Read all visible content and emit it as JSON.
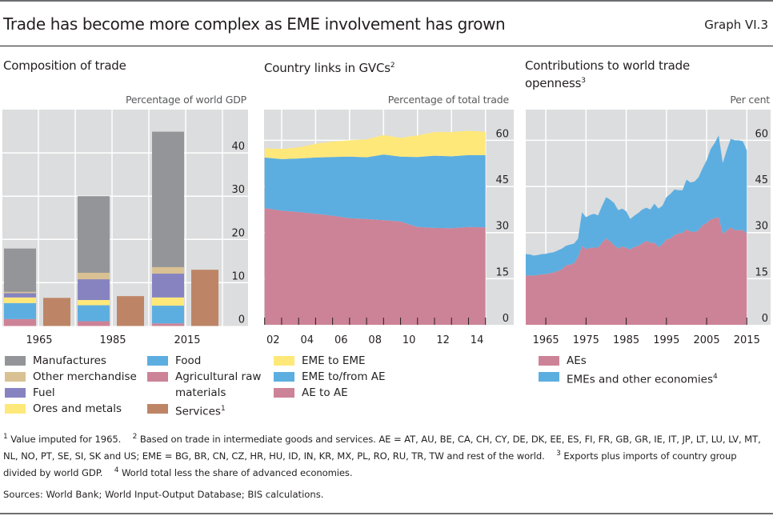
{
  "header": {
    "title": "Trade has become more complex as EME involvement has grown",
    "graph_number": "Graph VI.3"
  },
  "colors": {
    "manufactures": "#939598",
    "other_merchandise": "#d9c193",
    "fuel": "#8683c0",
    "ores_metals": "#ffe87a",
    "food": "#5daee0",
    "agri": "#cd8397",
    "services": "#bd8566",
    "panel_bg": "#dcddde",
    "grid": "#ffffff"
  },
  "chart_data": [
    {
      "type": "bar",
      "stacked": true,
      "title": "Composition of trade",
      "title_footnote": "",
      "unit_label": "Percentage of world GDP",
      "categories": [
        "1965",
        "1985",
        "2015"
      ],
      "ylim": [
        0,
        50
      ],
      "yticks": [
        "0",
        "10",
        "20",
        "30",
        "40"
      ],
      "ytick_values": [
        0,
        10,
        20,
        30,
        40
      ],
      "grid": true,
      "merchandise_series": [
        {
          "name": "Agricultural raw materials",
          "color_key": "agri",
          "values": [
            1.6,
            1.1,
            0.6
          ]
        },
        {
          "name": "Food",
          "color_key": "food",
          "values": [
            3.7,
            3.7,
            4.1
          ]
        },
        {
          "name": "Ores and metals",
          "color_key": "ores_metals",
          "values": [
            1.3,
            1.2,
            1.9
          ]
        },
        {
          "name": "Fuel",
          "color_key": "fuel",
          "values": [
            1.0,
            4.8,
            5.5
          ]
        },
        {
          "name": "Other merchandise",
          "color_key": "other_merchandise",
          "values": [
            0.3,
            1.5,
            1.5
          ]
        },
        {
          "name": "Manufactures",
          "color_key": "manufactures",
          "values": [
            10.0,
            17.7,
            31.3
          ]
        }
      ],
      "services_series": {
        "name": "Services",
        "footnote": "1",
        "color_key": "services",
        "values": [
          6.5,
          6.9,
          13.0
        ]
      },
      "legend": {
        "col1": [
          {
            "label": "Manufactures",
            "color_key": "manufactures",
            "sup": ""
          },
          {
            "label": "Other merchandise",
            "color_key": "other_merchandise",
            "sup": ""
          },
          {
            "label": "Fuel",
            "color_key": "fuel",
            "sup": ""
          },
          {
            "label": "Ores and metals",
            "color_key": "ores_metals",
            "sup": ""
          }
        ],
        "col2": [
          {
            "label": "Food",
            "color_key": "food",
            "sup": ""
          },
          {
            "label": "Agricultural raw materials",
            "color_key": "agri",
            "sup": ""
          },
          {
            "label": "Services",
            "color_key": "services",
            "sup": "1"
          }
        ]
      }
    },
    {
      "type": "area",
      "stacked": true,
      "title": "Country links in GVCs",
      "title_footnote": "2",
      "unit_label": "Percentage of total trade",
      "x": [
        2002,
        2003,
        2004,
        2005,
        2006,
        2007,
        2008,
        2009,
        2010,
        2011,
        2012,
        2013,
        2014,
        2015
      ],
      "xticks": [
        "02",
        "04",
        "06",
        "08",
        "10",
        "12",
        "14"
      ],
      "ylim": [
        0,
        70
      ],
      "yticks": [
        "0",
        "15",
        "30",
        "45",
        "60"
      ],
      "ytick_values": [
        0,
        15,
        30,
        45,
        60
      ],
      "grid": true,
      "series": [
        {
          "name": "AE to AE",
          "color_key": "agri",
          "values": [
            38.0,
            37.1,
            36.7,
            36.1,
            35.5,
            34.7,
            34.4,
            34.0,
            33.6,
            31.8,
            31.5,
            31.4,
            31.8,
            31.7
          ]
        },
        {
          "name": "EME to/from AE",
          "color_key": "food",
          "values": [
            16.4,
            16.8,
            17.4,
            18.3,
            19.1,
            20.0,
            20.1,
            21.4,
            21.1,
            22.8,
            23.5,
            23.4,
            23.4,
            23.5
          ]
        },
        {
          "name": "EME to EME",
          "color_key": "ores_metals",
          "values": [
            3.0,
            3.3,
            3.6,
            4.5,
            5.0,
            5.3,
            5.8,
            6.3,
            6.1,
            7.0,
            7.7,
            7.9,
            7.9,
            7.6
          ]
        }
      ],
      "legend": [
        {
          "label": "EME to EME",
          "color_key": "ores_metals",
          "sup": ""
        },
        {
          "label": "EME to/from AE",
          "color_key": "food",
          "sup": ""
        },
        {
          "label": "AE to AE",
          "color_key": "agri",
          "sup": ""
        }
      ]
    },
    {
      "type": "area",
      "stacked": true,
      "title": "Contributions to world trade openness",
      "title_footnote": "3",
      "unit_label": "Per cent",
      "x": [
        1960,
        1961,
        1962,
        1963,
        1964,
        1965,
        1966,
        1967,
        1968,
        1969,
        1970,
        1971,
        1972,
        1973,
        1974,
        1975,
        1976,
        1977,
        1978,
        1979,
        1980,
        1981,
        1982,
        1983,
        1984,
        1985,
        1986,
        1987,
        1988,
        1989,
        1990,
        1991,
        1992,
        1993,
        1994,
        1995,
        1996,
        1997,
        1998,
        1999,
        2000,
        2001,
        2002,
        2003,
        2004,
        2005,
        2006,
        2007,
        2008,
        2009,
        2010,
        2011,
        2012,
        2013,
        2014,
        2015
      ],
      "xticks": [
        "1965",
        "1975",
        "1985",
        "1995",
        "2005",
        "2015"
      ],
      "xtick_values": [
        1965,
        1975,
        1985,
        1995,
        2005,
        2015
      ],
      "ylim": [
        0,
        70
      ],
      "yticks": [
        "0",
        "15",
        "30",
        "45",
        "60"
      ],
      "ytick_values": [
        0,
        15,
        30,
        45,
        60
      ],
      "grid": true,
      "series": [
        {
          "name": "AEs",
          "color_key": "agri",
          "values": [
            16.0,
            16.1,
            16.0,
            16.2,
            16.4,
            16.5,
            16.7,
            17.1,
            17.5,
            18.0,
            19.3,
            19.6,
            20.0,
            22.0,
            25.6,
            24.6,
            25.0,
            25.1,
            25.1,
            26.7,
            28.1,
            27.1,
            25.9,
            24.8,
            25.5,
            25.0,
            24.5,
            25.3,
            25.7,
            26.5,
            27.3,
            26.7,
            26.7,
            25.3,
            26.2,
            27.8,
            28.1,
            29.2,
            29.7,
            29.9,
            31.0,
            30.4,
            30.1,
            30.8,
            32.4,
            33.1,
            34.3,
            34.7,
            35.0,
            29.6,
            30.6,
            31.7,
            30.8,
            30.8,
            30.8,
            29.7
          ]
        },
        {
          "name": "EMEs and other economies",
          "footnote": "4",
          "color_key": "food",
          "values": [
            7.0,
            6.8,
            6.5,
            6.5,
            6.6,
            6.6,
            6.7,
            6.5,
            6.7,
            6.8,
            6.4,
            6.5,
            6.4,
            6.0,
            11.0,
            10.4,
            10.7,
            11.0,
            10.5,
            12.0,
            13.4,
            13.6,
            13.7,
            12.5,
            12.3,
            11.9,
            9.9,
            10.2,
            10.7,
            11.0,
            10.8,
            10.8,
            12.7,
            12.5,
            12.5,
            13.7,
            14.5,
            14.8,
            14.1,
            13.9,
            16.2,
            15.9,
            16.5,
            17.2,
            18.5,
            20.4,
            22.9,
            24.4,
            26.6,
            23.0,
            26.2,
            28.8,
            29.2,
            29.2,
            28.9,
            27.0
          ]
        }
      ],
      "legend": [
        {
          "label": "AEs",
          "color_key": "agri",
          "sup": ""
        },
        {
          "label": "EMEs and other economies",
          "color_key": "food",
          "sup": "4"
        }
      ]
    }
  ],
  "footnotes": {
    "n1_mark": "1",
    "n1": "Value imputed for 1965.",
    "n2_mark": "2",
    "n2": "Based on trade in intermediate goods and services. AE = AT, AU, BE, CA, CH, CY, DE, DK, EE, ES, FI, FR, GB, GR, IE, IT, JP, LT, LU, LV, MT, NL, NO, PT, SE, SI, SK and US; EME = BG, BR, CN, CZ, HR, HU, ID, IN, KR, MX, PL, RO, RU, TR, TW and rest of the world.",
    "n3_mark": "3",
    "n3": "Exports plus imports of country group divided by world GDP.",
    "n4_mark": "4",
    "n4": "World total less the share of advanced economies."
  },
  "sources": "Sources: World Bank; World Input-Output Database; BIS calculations."
}
